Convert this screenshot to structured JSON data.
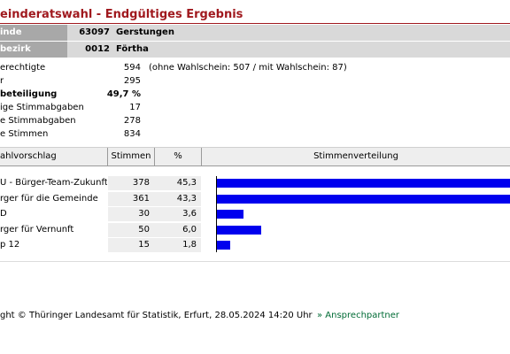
{
  "title": "einderatswahl - Endgültiges Ergebnis",
  "header": {
    "gemeinde": {
      "label": "inde",
      "code": "63097",
      "name": "Gerstungen"
    },
    "bezirk": {
      "label": "bezirk",
      "code": "0012",
      "name": "Förtha"
    }
  },
  "stats": [
    {
      "label": "erechtigte",
      "value": "594",
      "note": "(ohne Wahlschein: 507 / mit Wahlschein: 87)",
      "bold": false
    },
    {
      "label": "r",
      "value": "295",
      "note": "",
      "bold": false
    },
    {
      "label": "beteiligung",
      "value": "49,7 %",
      "note": "",
      "bold": true
    },
    {
      "label": "ige Stimmabgaben",
      "value": "17",
      "note": "",
      "bold": false
    },
    {
      "label": "e Stimmabgaben",
      "value": "278",
      "note": "",
      "bold": false
    },
    {
      "label": "e Stimmen",
      "value": "834",
      "note": "",
      "bold": false
    }
  ],
  "table": {
    "headers": {
      "name": "ahlvorschlag",
      "votes": "Stimmen",
      "pct": "%",
      "dist": "Stimmenverteilung"
    },
    "rows": [
      {
        "name": "U - Bürger-Team-Zukunft",
        "votes": "378",
        "pct": "45,3",
        "share": 45.3
      },
      {
        "name": "rger für die Gemeinde",
        "votes": "361",
        "pct": "43,3",
        "share": 43.3
      },
      {
        "name": "D",
        "votes": "30",
        "pct": "3,6",
        "share": 3.6
      },
      {
        "name": "rger für Vernunft",
        "votes": "50",
        "pct": "6,0",
        "share": 6.0
      },
      {
        "name": "p 12",
        "votes": "15",
        "pct": "1,8",
        "share": 1.8
      }
    ]
  },
  "footer": {
    "copyright": "ght © Thüringer Landesamt für Statistik, Erfurt, 28.05.2024 14:20 Uhr",
    "contact": "» Ansprechpartner"
  },
  "colors": {
    "title": "#a0191e",
    "bar": "#0000ee",
    "contact": "#006b35"
  }
}
